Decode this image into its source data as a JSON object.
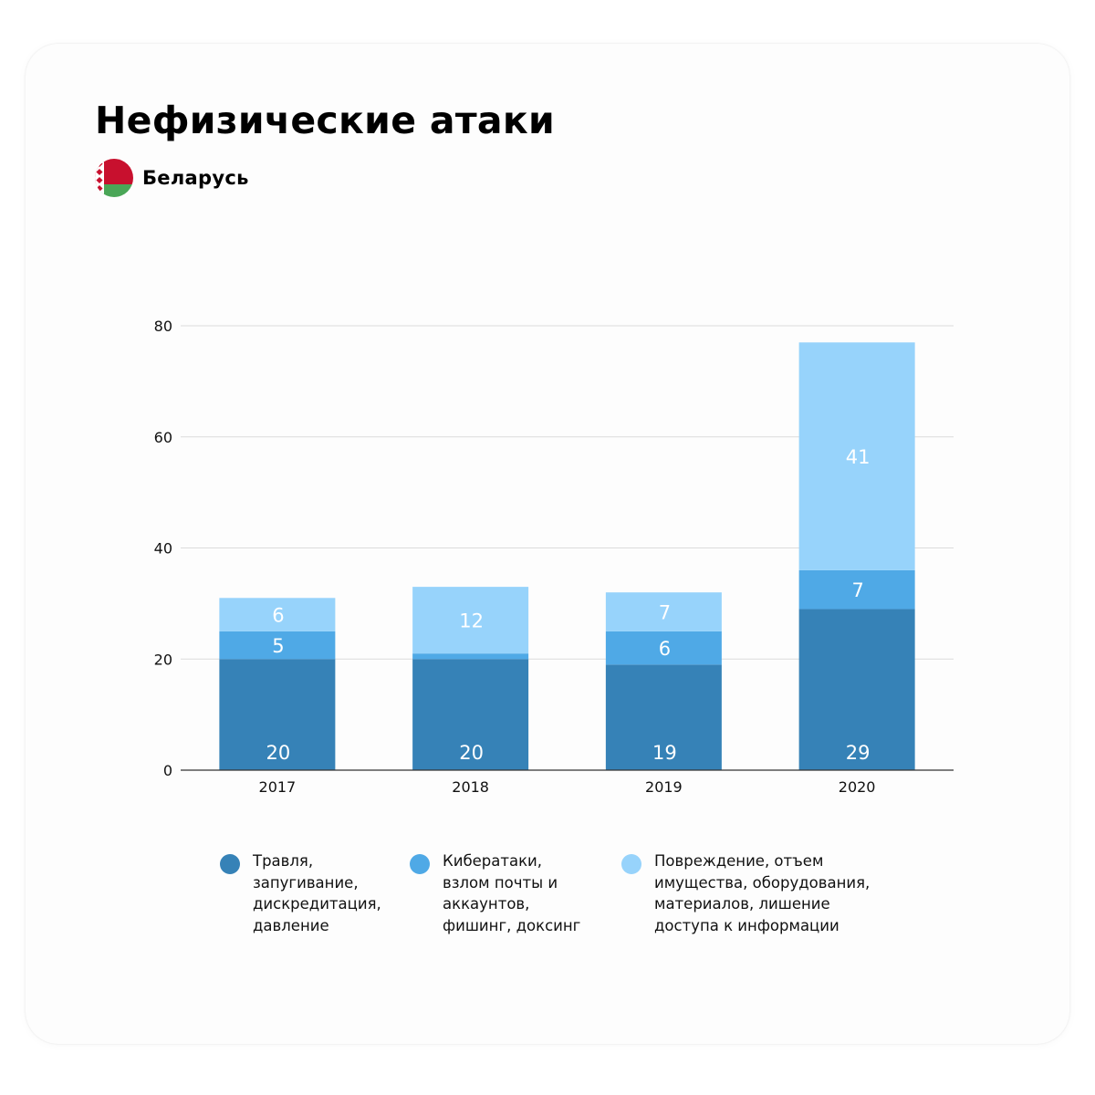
{
  "header": {
    "title": "Нефизические атаки",
    "country": "Беларусь"
  },
  "colors": {
    "flag_red": "#c8102e",
    "flag_green": "#4aa657",
    "flag_ornament_bg": "#ffffff",
    "grid": "#dcdcdc",
    "axis": "#333333"
  },
  "legend": [
    {
      "label": "Травля,\nзапугивание,\nдискредитация,\nдавление",
      "color": "#3682b7"
    },
    {
      "label": "Кибератаки,\nвзлом почты и\nаккаунтов,\nфишинг, доксинг",
      "color": "#4fa9e6"
    },
    {
      "label": "Повреждение, отъем\nимущества, оборудования,\nматериалов, лишение\nдоступа к информации",
      "color": "#97d3fb"
    }
  ],
  "chart_data": {
    "type": "bar",
    "stacked": true,
    "categories": [
      "2017",
      "2018",
      "2019",
      "2020"
    ],
    "series": [
      {
        "name": "Травля, запугивание, дискредитация, давление",
        "values": [
          20,
          20,
          19,
          29
        ],
        "color": "#3682b7",
        "labels": [
          "20",
          "20",
          "19",
          "29"
        ]
      },
      {
        "name": "Кибератаки, взлом почты и аккаунтов, фишинг, доксинг",
        "values": [
          5,
          1,
          6,
          7
        ],
        "color": "#4fa9e6",
        "labels": [
          "5",
          "",
          "6",
          "7"
        ]
      },
      {
        "name": "Повреждение, отъем имущества, оборудования, материалов, лишение доступа к информации",
        "values": [
          6,
          12,
          7,
          41
        ],
        "color": "#97d3fb",
        "labels": [
          "6",
          "12",
          "7",
          "41"
        ]
      }
    ],
    "yticks": [
      "0",
      "20",
      "40",
      "60",
      "80"
    ],
    "ylim": [
      0,
      80
    ],
    "grid": true,
    "legend_position": "bottom"
  }
}
